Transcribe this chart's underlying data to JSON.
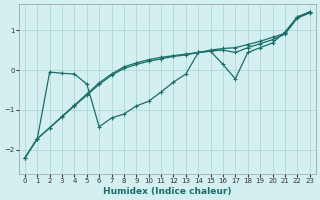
{
  "xlabel": "Humidex (Indice chaleur)",
  "background_color": "#d4efef",
  "grid_color": "#aed8d8",
  "line_color": "#1a6e6a",
  "ylim": [
    -2.6,
    1.65
  ],
  "xlim": [
    -0.5,
    23.5
  ],
  "yticks": [
    -2,
    -1,
    0,
    1
  ],
  "xticks": [
    0,
    1,
    2,
    3,
    4,
    5,
    6,
    7,
    8,
    9,
    10,
    11,
    12,
    13,
    14,
    15,
    16,
    17,
    18,
    19,
    20,
    21,
    22,
    23
  ],
  "line_top_x": [
    0,
    1,
    2,
    3,
    4,
    5,
    6,
    7,
    8,
    9,
    10,
    11,
    12,
    13,
    14,
    15,
    16,
    17,
    18,
    19,
    20,
    21,
    22,
    23
  ],
  "line_top_y": [
    -2.2,
    -1.72,
    -1.44,
    -1.16,
    -0.88,
    -0.6,
    -0.32,
    -0.1,
    0.08,
    0.18,
    0.26,
    0.32,
    0.36,
    0.4,
    0.44,
    0.5,
    0.54,
    0.56,
    0.64,
    0.72,
    0.82,
    0.92,
    1.32,
    1.45
  ],
  "line_mid_x": [
    0,
    1,
    2,
    3,
    4,
    5,
    6,
    7,
    8,
    9,
    10,
    11,
    12,
    13,
    14,
    15,
    16,
    17,
    18,
    19,
    20,
    21,
    22,
    23
  ],
  "line_mid_y": [
    -2.2,
    -1.72,
    -1.45,
    -1.17,
    -0.9,
    -0.63,
    -0.36,
    -0.13,
    0.04,
    0.14,
    0.22,
    0.28,
    0.34,
    0.38,
    0.44,
    0.48,
    0.5,
    0.44,
    0.56,
    0.66,
    0.76,
    0.9,
    1.3,
    1.43
  ],
  "line_curve_x": [
    0,
    1,
    2,
    3,
    4,
    5,
    6,
    7,
    8,
    9,
    10,
    11,
    12,
    13,
    14,
    15,
    16,
    17,
    18,
    19,
    20,
    21,
    22,
    23
  ],
  "line_curve_y": [
    -2.2,
    -1.72,
    -0.05,
    -0.08,
    -0.1,
    -0.35,
    -1.42,
    -1.2,
    -1.1,
    -0.9,
    -0.78,
    -0.55,
    -0.3,
    -0.1,
    0.44,
    0.47,
    0.14,
    -0.22,
    0.44,
    0.56,
    0.68,
    0.95,
    1.33,
    1.46
  ]
}
